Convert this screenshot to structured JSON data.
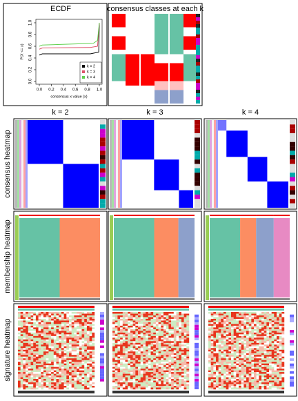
{
  "chart_data": {
    "type": "line",
    "title": "ECDF",
    "x_label": "consensus x value (x)",
    "y_label": "P(X <= x)",
    "xlim": [
      0,
      1
    ],
    "ylim": [
      0,
      1
    ],
    "xticks": [
      {
        "value": 0,
        "label": "0.0"
      },
      {
        "value": 0.2,
        "label": "0.2"
      },
      {
        "value": 0.4,
        "label": "0.4"
      },
      {
        "value": 0.6,
        "label": "0.6"
      },
      {
        "value": 0.8,
        "label": "0.8"
      },
      {
        "value": 1,
        "label": "1.0"
      }
    ],
    "yticks": [
      {
        "value": 0,
        "label": "0.0"
      },
      {
        "value": 0.2,
        "label": "0.2"
      },
      {
        "value": 0.4,
        "label": "0.4"
      },
      {
        "value": 0.6,
        "label": "0.6"
      },
      {
        "value": 0.8,
        "label": "0.8"
      },
      {
        "value": 1,
        "label": "1.0"
      }
    ],
    "legend": "bottom-right",
    "series": [
      {
        "name": "k = 2",
        "color": "#000000",
        "x": [
          0,
          0.05,
          0.85,
          0.99,
          1
        ],
        "values": [
          0.45,
          0.47,
          0.47,
          0.5,
          1
        ]
      },
      {
        "name": "k = 3",
        "color": "#DF536B",
        "x": [
          0,
          0.05,
          0.85,
          0.97,
          1
        ],
        "values": [
          0.55,
          0.57,
          0.58,
          0.6,
          1
        ]
      },
      {
        "name": "k = 4",
        "color": "#61D04F",
        "x": [
          0,
          0.05,
          0.9,
          0.97,
          1
        ],
        "values": [
          0.6,
          0.62,
          0.65,
          0.7,
          1
        ]
      }
    ]
  },
  "panels": {
    "classes_title": "consensus classes at each k",
    "columns": [
      "k = 2",
      "k = 3",
      "k = 4"
    ],
    "rows": [
      "consensus heatmap",
      "membership heatmap",
      "signature heatmap"
    ]
  }
}
